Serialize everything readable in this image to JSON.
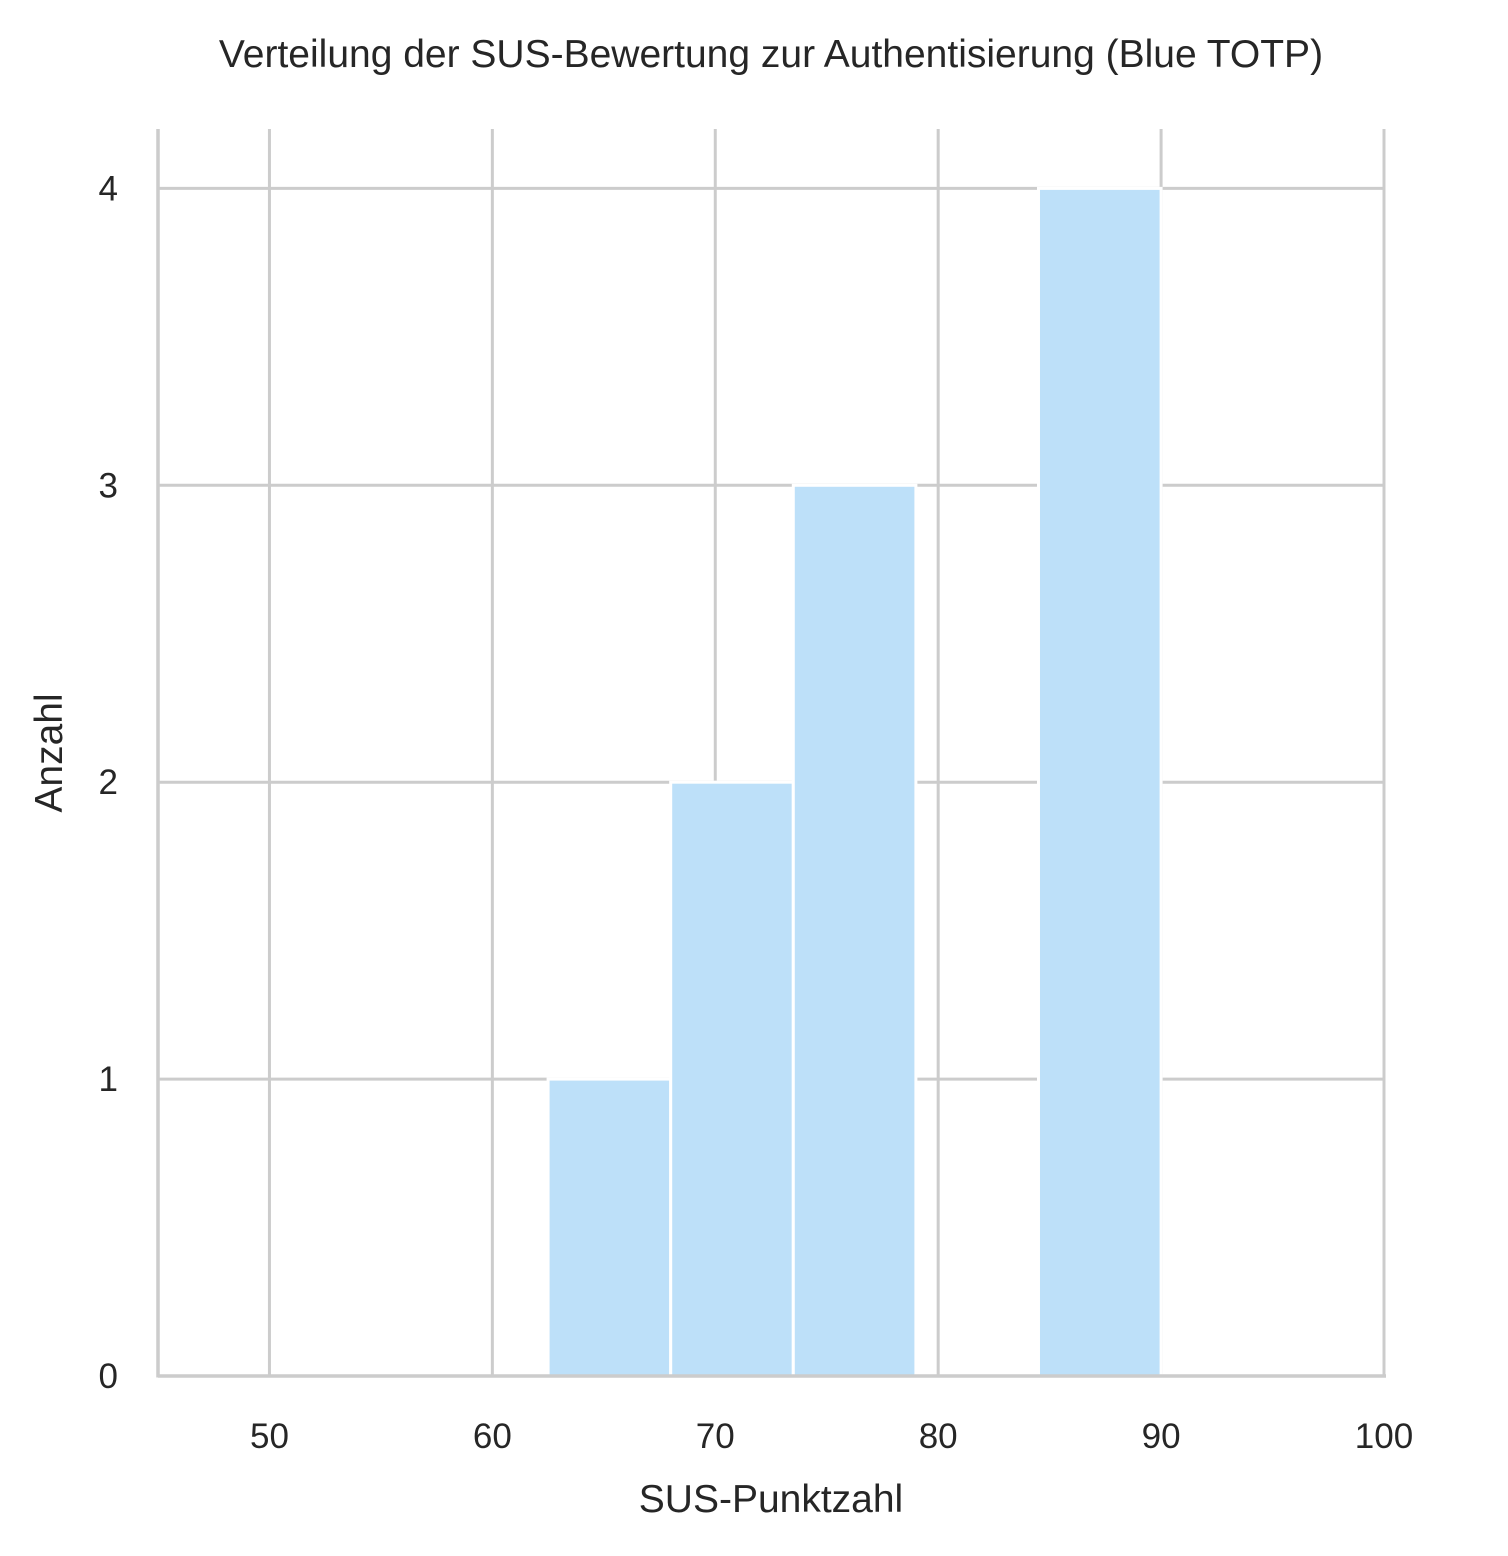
{
  "chart_data": {
    "type": "bar",
    "subtype": "histogram",
    "title": "Verteilung der SUS-Bewertung zur Authentisierung (Blue TOTP)",
    "xlabel": "SUS-Punktzahl",
    "ylabel": "Anzahl",
    "xlim": [
      45,
      100
    ],
    "ylim": [
      0,
      4.2
    ],
    "x_ticks": [
      50,
      60,
      70,
      80,
      90,
      100
    ],
    "y_ticks": [
      0,
      1,
      2,
      3,
      4
    ],
    "bins": [
      {
        "start": 62.5,
        "end": 68.0,
        "count": 1
      },
      {
        "start": 68.0,
        "end": 73.5,
        "count": 2
      },
      {
        "start": 73.5,
        "end": 79.0,
        "count": 3
      },
      {
        "start": 79.0,
        "end": 84.5,
        "count": 0
      },
      {
        "start": 84.5,
        "end": 90.0,
        "count": 4
      }
    ],
    "grid": true,
    "bar_color": "#bde0f9",
    "grid_color": "#cccccc",
    "text_color": "#262626"
  }
}
